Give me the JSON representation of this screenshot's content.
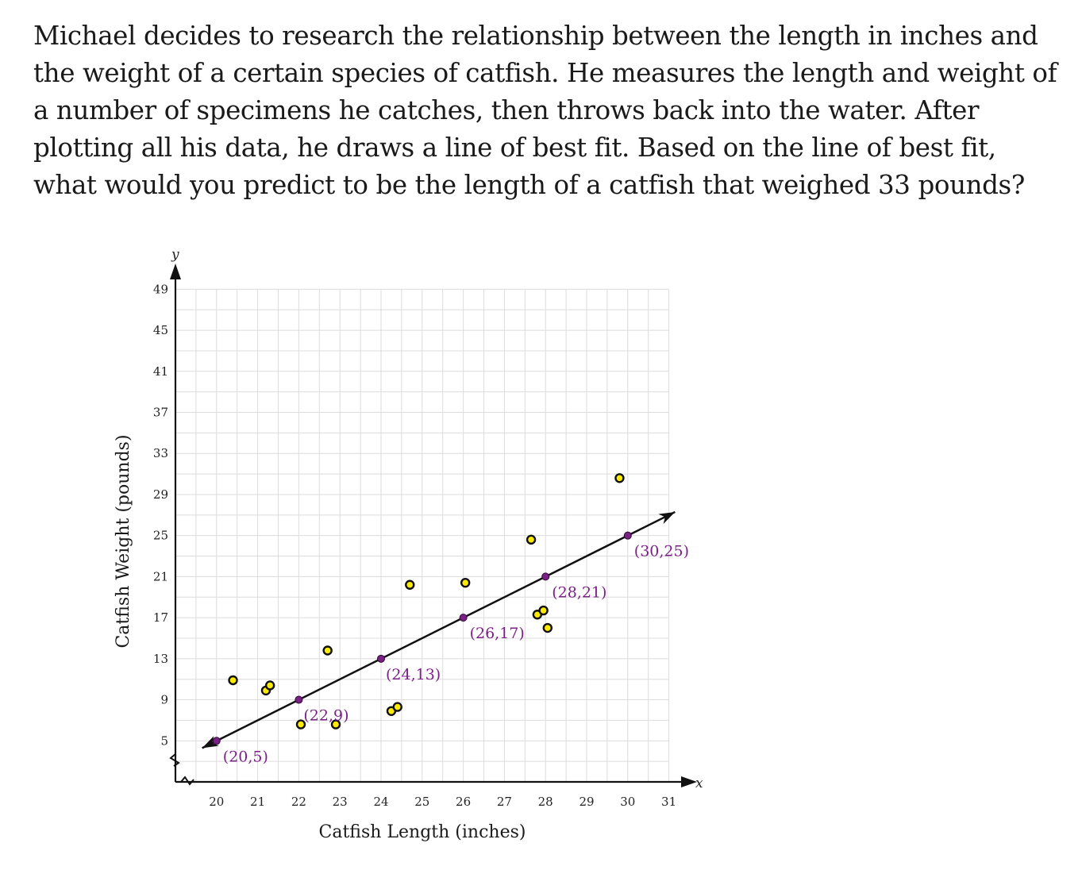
{
  "question": "Michael decides to research the relationship between the length in inches and the weight of a certain species of catfish. He measures the length and weight of a number of specimens he catches, then throws back into the water. After plotting all his data, he draws a line of best fit. Based on the line of best fit, what would you predict to be the length of a catfish that weighed 33 pounds?",
  "chart_data": {
    "type": "scatter",
    "title": "",
    "xlabel": "Catfish Length (inches)",
    "ylabel": "Catfish Weight (pounds)",
    "x_axis_letter": "x",
    "y_axis_letter": "y",
    "xlim": [
      19,
      31
    ],
    "ylim": [
      1,
      49
    ],
    "x_ticks": [
      20,
      21,
      22,
      23,
      24,
      25,
      26,
      27,
      28,
      29,
      30,
      31
    ],
    "y_ticks": [
      5,
      9,
      13,
      17,
      21,
      25,
      29,
      33,
      37,
      41,
      45,
      49
    ],
    "grid": true,
    "point_color": "#ffeb00",
    "line_point_color": "#7a1f86",
    "label_color": "#7a1f86",
    "line_of_best_fit": {
      "points": [
        {
          "x": 20,
          "y": 5,
          "label": "(20,5)"
        },
        {
          "x": 22,
          "y": 9,
          "label": "(22,9)"
        },
        {
          "x": 24,
          "y": 13,
          "label": "(24,13)"
        },
        {
          "x": 26,
          "y": 17,
          "label": "(26,17)"
        },
        {
          "x": 28,
          "y": 21,
          "label": "(28,21)"
        },
        {
          "x": 30,
          "y": 25,
          "label": "(30,25)"
        }
      ]
    },
    "data_points": [
      {
        "x": 20.4,
        "y": 10.9
      },
      {
        "x": 21.2,
        "y": 9.9
      },
      {
        "x": 21.3,
        "y": 10.4
      },
      {
        "x": 22.7,
        "y": 13.8
      },
      {
        "x": 22.05,
        "y": 6.6
      },
      {
        "x": 22.9,
        "y": 6.6
      },
      {
        "x": 24.25,
        "y": 7.9
      },
      {
        "x": 24.4,
        "y": 8.3
      },
      {
        "x": 24.7,
        "y": 20.2
      },
      {
        "x": 26.05,
        "y": 20.4
      },
      {
        "x": 27.65,
        "y": 24.6
      },
      {
        "x": 27.8,
        "y": 17.3
      },
      {
        "x": 27.95,
        "y": 17.7
      },
      {
        "x": 28.05,
        "y": 16.0
      },
      {
        "x": 29.8,
        "y": 30.6
      }
    ]
  }
}
